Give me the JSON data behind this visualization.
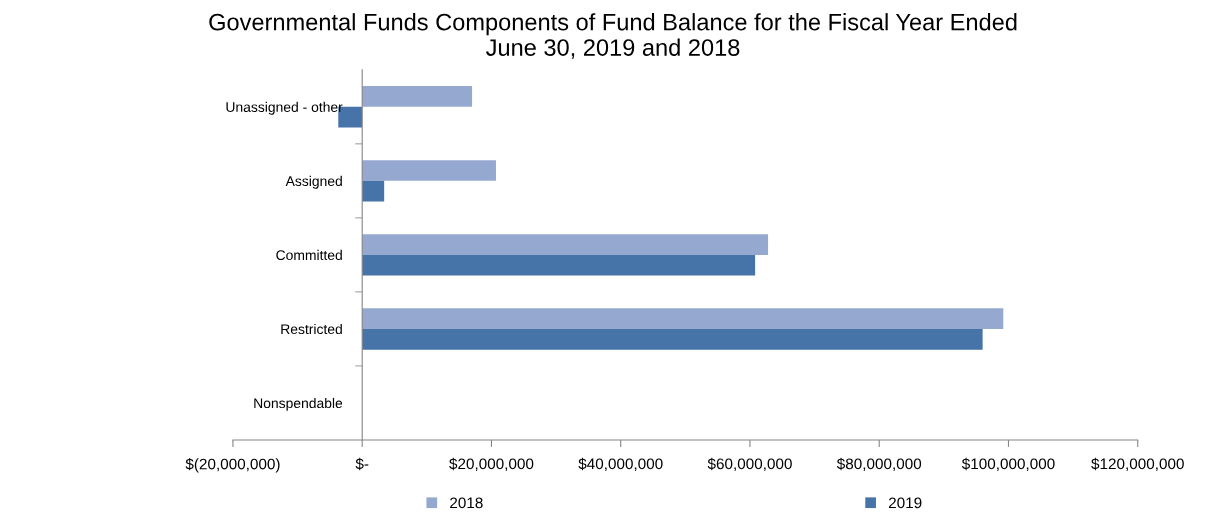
{
  "chart_data": {
    "type": "bar",
    "orientation": "horizontal",
    "title": "Governmental Funds Components of Fund Balance for the Fiscal Year Ended\nJune 30, 2019 and 2018",
    "categories": [
      "Unassigned - other",
      "Assigned",
      "Committed",
      "Restricted",
      "Nonspendable"
    ],
    "series": [
      {
        "name": "2018",
        "color": "#95a9d0",
        "values": [
          17000000,
          20700000,
          62800000,
          99200000,
          0
        ]
      },
      {
        "name": "2019",
        "color": "#4673a8",
        "values": [
          -3700000,
          3400000,
          60800000,
          96000000,
          0
        ]
      }
    ],
    "xlim": [
      -20000000,
      120000000
    ],
    "xticks": [
      {
        "value": -20000000,
        "label": "$(20,000,000)"
      },
      {
        "value": 0,
        "label": "$-"
      },
      {
        "value": 20000000,
        "label": "$20,000,000"
      },
      {
        "value": 40000000,
        "label": "$40,000,000"
      },
      {
        "value": 60000000,
        "label": "$60,000,000"
      },
      {
        "value": 80000000,
        "label": "$80,000,000"
      },
      {
        "value": 100000000,
        "label": "$100,000,000"
      },
      {
        "value": 120000000,
        "label": "$120,000,000"
      }
    ],
    "grid": false,
    "legend": "bottom"
  }
}
